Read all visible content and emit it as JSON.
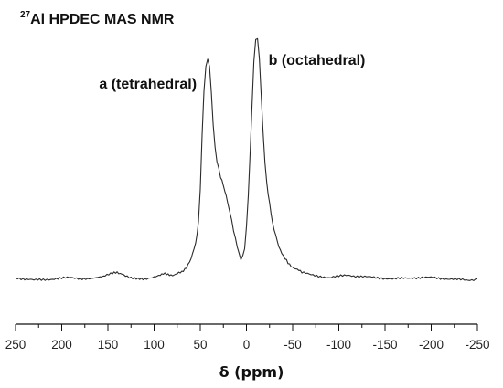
{
  "chart_data": {
    "type": "line",
    "title": {
      "superscript": "27",
      "main": "Al HPDEC MAS NMR"
    },
    "xlabel": "δ (ppm)",
    "ylabel": "",
    "xlim": [
      250,
      -250
    ],
    "ylim": [
      0,
      1
    ],
    "x_axis_reversed": true,
    "x_ticks": [
      250,
      200,
      150,
      100,
      50,
      0,
      -50,
      -100,
      -150,
      -200,
      -250
    ],
    "y_axis_shown": false,
    "grid": false,
    "annotations": [
      {
        "text": "a (tetrahedral)",
        "x": 42,
        "y": 0.83
      },
      {
        "text": "b (octahedral)",
        "x": -10,
        "y": 0.91
      }
    ],
    "series": [
      {
        "x": [
          250,
          230,
          210,
          190,
          170,
          155,
          145,
          140,
          135,
          125,
          110,
          100,
          95,
          90,
          85,
          80,
          75,
          70,
          65,
          60,
          55,
          52,
          50,
          48,
          46,
          44,
          42,
          40,
          38,
          36,
          34,
          32,
          30,
          28,
          25,
          22,
          20,
          18,
          16,
          14,
          12,
          10,
          8,
          6,
          4,
          2,
          0,
          -2,
          -4,
          -6,
          -8,
          -10,
          -12,
          -14,
          -16,
          -18,
          -20,
          -22,
          -25,
          -28,
          -30,
          -35,
          -40,
          -45,
          -50,
          -55,
          -60,
          -70,
          -80,
          -90,
          -100,
          -110,
          -120,
          -140,
          -160,
          -180,
          -200,
          -220,
          -240,
          -250
        ],
        "y": [
          0.01,
          0.0,
          0.005,
          0.01,
          0.005,
          0.015,
          0.025,
          0.03,
          0.025,
          0.01,
          0.005,
          0.01,
          0.02,
          0.025,
          0.02,
          0.02,
          0.025,
          0.03,
          0.05,
          0.08,
          0.14,
          0.22,
          0.35,
          0.55,
          0.72,
          0.81,
          0.84,
          0.81,
          0.71,
          0.59,
          0.5,
          0.45,
          0.42,
          0.39,
          0.36,
          0.32,
          0.29,
          0.26,
          0.23,
          0.19,
          0.16,
          0.13,
          0.1,
          0.08,
          0.09,
          0.12,
          0.2,
          0.32,
          0.48,
          0.66,
          0.83,
          0.91,
          0.92,
          0.84,
          0.7,
          0.56,
          0.45,
          0.37,
          0.29,
          0.22,
          0.19,
          0.13,
          0.09,
          0.065,
          0.05,
          0.04,
          0.03,
          0.02,
          0.015,
          0.01,
          0.015,
          0.02,
          0.015,
          0.01,
          0.005,
          0.01,
          0.01,
          0.005,
          0.0,
          0.005
        ]
      }
    ]
  }
}
